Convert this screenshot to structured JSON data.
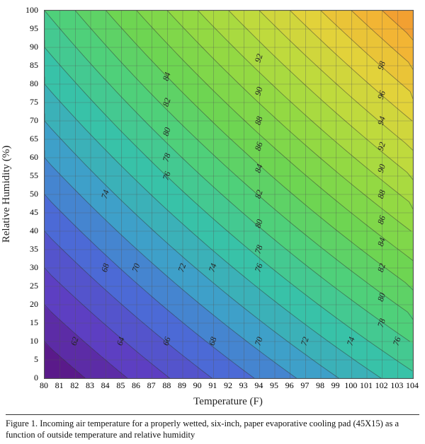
{
  "figure": {
    "type": "heatmap-contour",
    "background_color": "#ffffff",
    "border_color": "#555555",
    "grid_color": "#555555",
    "grid_opacity": 0.55,
    "contour_color": "#333333",
    "contour_opacity": 0.5,
    "x": {
      "label": "Temperature (F)",
      "min": 80,
      "max": 104,
      "ticks": [
        80,
        81,
        82,
        83,
        84,
        85,
        86,
        87,
        88,
        89,
        90,
        91,
        92,
        93,
        94,
        95,
        96,
        97,
        98,
        99,
        100,
        101,
        102,
        103,
        104
      ],
      "label_fontsize": 15,
      "tick_fontsize": 12
    },
    "y": {
      "label": "Relative Humidity (%)",
      "min": 0,
      "max": 100,
      "ticks": [
        0,
        5,
        10,
        15,
        20,
        25,
        30,
        35,
        40,
        45,
        50,
        55,
        60,
        65,
        70,
        75,
        80,
        85,
        90,
        95,
        100
      ],
      "label_fontsize": 15,
      "tick_fontsize": 12
    },
    "value_formula": "incoming_air_temp = T - 0.8*(1 - RH/100)*(T - wetbulb_approx)",
    "value_range": {
      "min": 56,
      "max": 104
    },
    "color_stops": [
      {
        "v": 56,
        "hex": "#4b0f63"
      },
      {
        "v": 60,
        "hex": "#5a1a8a"
      },
      {
        "v": 64,
        "hex": "#5d3fc2"
      },
      {
        "v": 68,
        "hex": "#4c6ad6"
      },
      {
        "v": 72,
        "hex": "#3ea0c9"
      },
      {
        "v": 76,
        "hex": "#38c2a8"
      },
      {
        "v": 80,
        "hex": "#4fd07a"
      },
      {
        "v": 84,
        "hex": "#6ed552"
      },
      {
        "v": 88,
        "hex": "#93d943"
      },
      {
        "v": 92,
        "hex": "#bfda3d"
      },
      {
        "v": 96,
        "hex": "#e2d23a"
      },
      {
        "v": 100,
        "hex": "#f2b534"
      },
      {
        "v": 104,
        "hex": "#f28a2e"
      }
    ],
    "contour_interval": 2,
    "contour_labels": [
      {
        "v": 62,
        "t": 82,
        "rh": 10
      },
      {
        "v": 64,
        "t": 85,
        "rh": 10
      },
      {
        "v": 66,
        "t": 88,
        "rh": 10
      },
      {
        "v": 68,
        "t": 91,
        "rh": 10
      },
      {
        "v": 70,
        "t": 94,
        "rh": 10
      },
      {
        "v": 72,
        "t": 97,
        "rh": 10
      },
      {
        "v": 74,
        "t": 100,
        "rh": 10
      },
      {
        "v": 76,
        "t": 103,
        "rh": 10
      },
      {
        "v": 68,
        "t": 84,
        "rh": 30
      },
      {
        "v": 70,
        "t": 86,
        "rh": 30
      },
      {
        "v": 72,
        "t": 89,
        "rh": 30
      },
      {
        "v": 74,
        "t": 91,
        "rh": 30
      },
      {
        "v": 76,
        "t": 94,
        "rh": 30
      },
      {
        "v": 74,
        "t": 84,
        "rh": 50
      },
      {
        "v": 76,
        "t": 88,
        "rh": 55
      },
      {
        "v": 78,
        "t": 88,
        "rh": 60
      },
      {
        "v": 80,
        "t": 88,
        "rh": 67
      },
      {
        "v": 82,
        "t": 88,
        "rh": 75
      },
      {
        "v": 84,
        "t": 88,
        "rh": 82
      },
      {
        "v": 78,
        "t": 94,
        "rh": 35
      },
      {
        "v": 80,
        "t": 94,
        "rh": 42
      },
      {
        "v": 82,
        "t": 94,
        "rh": 50
      },
      {
        "v": 84,
        "t": 94,
        "rh": 57
      },
      {
        "v": 86,
        "t": 94,
        "rh": 63
      },
      {
        "v": 88,
        "t": 94,
        "rh": 70
      },
      {
        "v": 90,
        "t": 94,
        "rh": 78
      },
      {
        "v": 92,
        "t": 94,
        "rh": 87
      },
      {
        "v": 78,
        "t": 102,
        "rh": 15
      },
      {
        "v": 80,
        "t": 102,
        "rh": 22
      },
      {
        "v": 82,
        "t": 102,
        "rh": 30
      },
      {
        "v": 84,
        "t": 102,
        "rh": 37
      },
      {
        "v": 86,
        "t": 102,
        "rh": 43
      },
      {
        "v": 88,
        "t": 102,
        "rh": 50
      },
      {
        "v": 90,
        "t": 102,
        "rh": 57
      },
      {
        "v": 92,
        "t": 102,
        "rh": 63
      },
      {
        "v": 94,
        "t": 102,
        "rh": 70
      },
      {
        "v": 96,
        "t": 102,
        "rh": 77
      },
      {
        "v": 98,
        "t": 102,
        "rh": 85
      }
    ],
    "caption": "Figure 1.  Incoming air temperature for a properly wetted, six-inch, paper evaporative cooling pad (45X15) as a function of outside temperature and relative humidity"
  }
}
